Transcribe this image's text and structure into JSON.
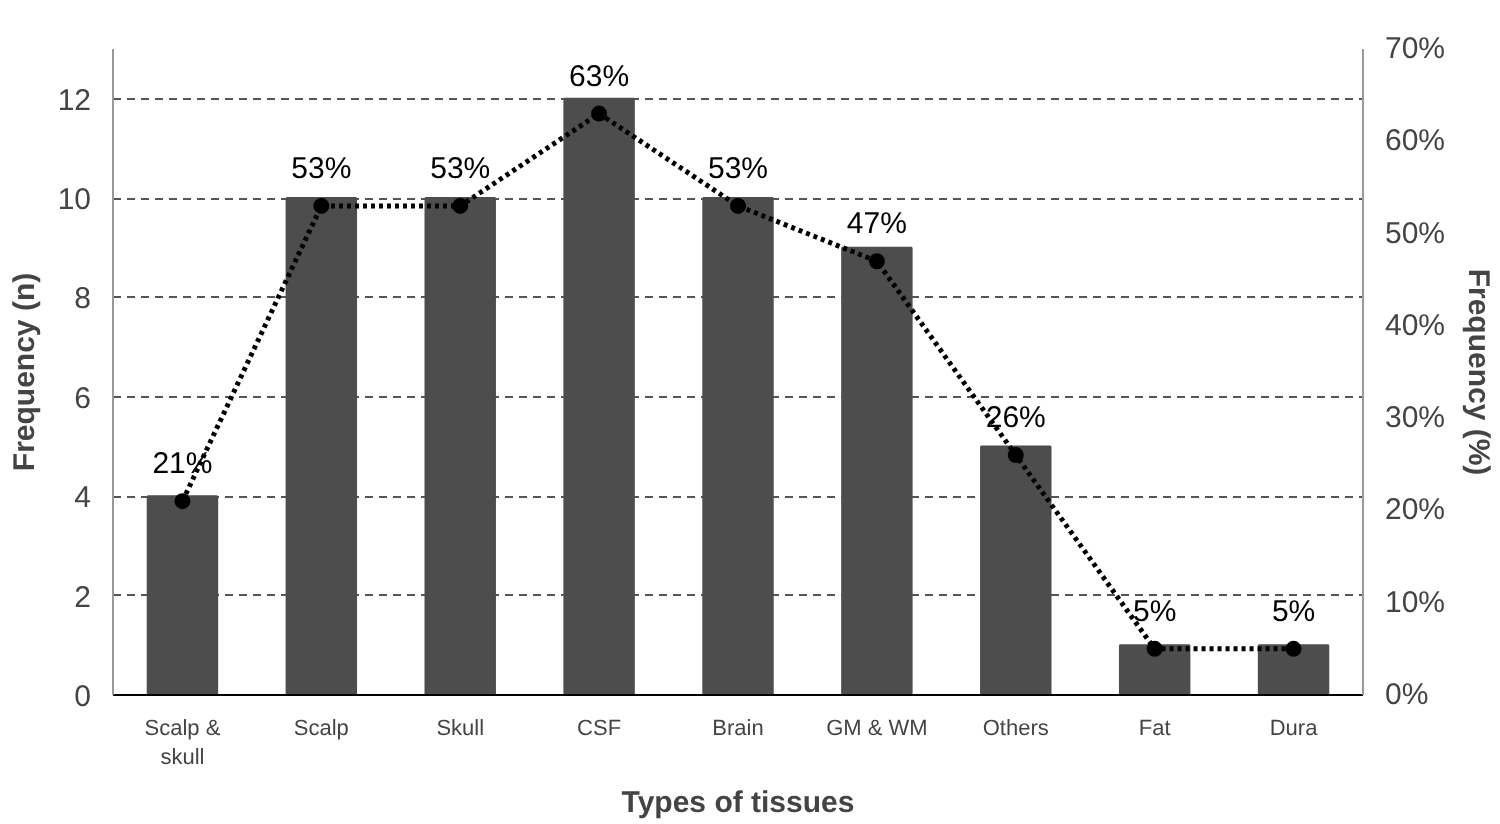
{
  "chart_data": {
    "type": "bar",
    "xlabel": "Types of tissues",
    "ylabel": "Frequency (n)",
    "y2label": "Frequency (%)",
    "categories": [
      "Scalp & skull",
      "Scalp",
      "Skull",
      "CSF",
      "Brain",
      "GM & WM",
      "Others",
      "Fat",
      "Dura"
    ],
    "series": [
      {
        "color": "#4d4d4d",
        "values": [
          4,
          10,
          10,
          12,
          10,
          9,
          5,
          1,
          1
        ]
      },
      {
        "type": "line",
        "axis": "y2",
        "color": "#000000",
        "marker": "circle",
        "line_style": "dotted",
        "values": [
          21,
          53,
          53,
          63,
          53,
          47,
          26,
          5,
          5
        ],
        "value_labels": [
          "21%",
          "53%",
          "53%",
          "63%",
          "53%",
          "47%",
          "26%",
          "5%",
          "5%"
        ]
      }
    ],
    "ylim": [
      0,
      13
    ],
    "yticks": [
      0,
      2,
      4,
      6,
      8,
      10,
      12
    ],
    "y2lim": [
      0,
      70
    ],
    "y2ticks": [
      {
        "value": 0,
        "label": "0%"
      },
      {
        "value": 10,
        "label": "10%"
      },
      {
        "value": 20,
        "label": "20%"
      },
      {
        "value": 30,
        "label": "30%"
      },
      {
        "value": 40,
        "label": "40%"
      },
      {
        "value": 50,
        "label": "50%"
      },
      {
        "value": 60,
        "label": "60%"
      },
      {
        "value": 70,
        "label": "70%"
      }
    ],
    "grid": "y"
  }
}
